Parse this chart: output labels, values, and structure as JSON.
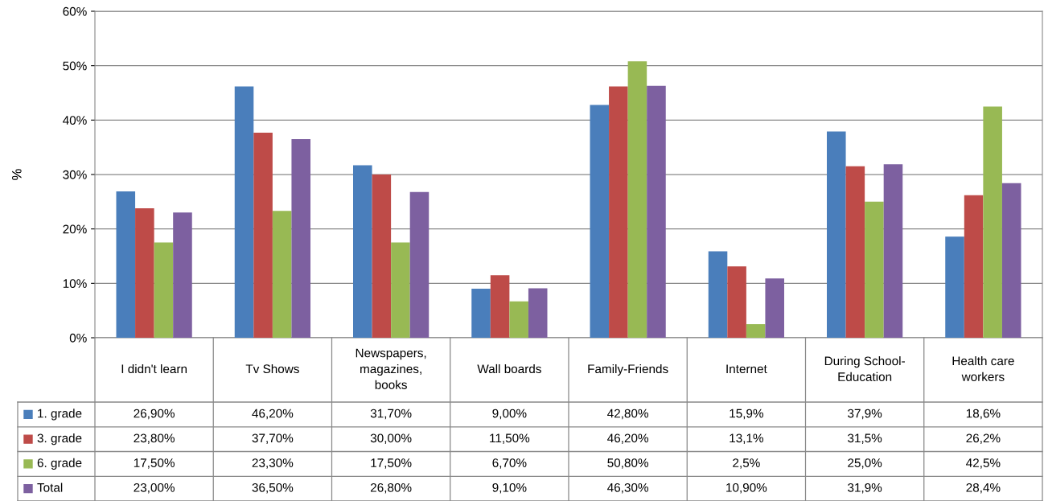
{
  "chart_data": {
    "type": "bar",
    "ylabel": "%",
    "categories": [
      "I didn't learn",
      "Tv Shows",
      "Newspapers,\nmagazines,\nbooks",
      "Wall boards",
      "Family-Friends",
      "Internet",
      "During School-\nEducation",
      "Health care\nworkers"
    ],
    "series": [
      {
        "name": "1. grade",
        "color": "#4a7ebb",
        "values": [
          26.9,
          46.2,
          31.7,
          9.0,
          42.8,
          15.9,
          37.9,
          18.6
        ],
        "value_labels": [
          "26,90%",
          "46,20%",
          "31,70%",
          "9,00%",
          "42,80%",
          "15,9%",
          "37,9%",
          "18,6%"
        ]
      },
      {
        "name": "3. grade",
        "color": "#be4b48",
        "values": [
          23.8,
          37.7,
          30.0,
          11.5,
          46.2,
          13.1,
          31.5,
          26.2
        ],
        "value_labels": [
          "23,80%",
          "37,70%",
          "30,00%",
          "11,50%",
          "46,20%",
          "13,1%",
          "31,5%",
          "26,2%"
        ]
      },
      {
        "name": "6. grade",
        "color": "#98b954",
        "values": [
          17.5,
          23.3,
          17.5,
          6.7,
          50.8,
          2.5,
          25.0,
          42.5
        ],
        "value_labels": [
          "17,50%",
          "23,30%",
          "17,50%",
          "6,70%",
          "50,80%",
          "2,5%",
          "25,0%",
          "42,5%"
        ]
      },
      {
        "name": "Total",
        "color": "#7d60a0",
        "values": [
          23.0,
          36.5,
          26.8,
          9.1,
          46.3,
          10.9,
          31.9,
          28.4
        ],
        "value_labels": [
          "23,00%",
          "36,50%",
          "26,80%",
          "9,10%",
          "46,30%",
          "10,90%",
          "31,9%",
          "28,4%"
        ]
      }
    ],
    "ylim": [
      0,
      60
    ],
    "yticks": [
      {
        "value": 0,
        "label": "0%"
      },
      {
        "value": 10,
        "label": "10%"
      },
      {
        "value": 20,
        "label": "20%"
      },
      {
        "value": 30,
        "label": "30%"
      },
      {
        "value": 40,
        "label": "40%"
      },
      {
        "value": 50,
        "label": "50%"
      },
      {
        "value": 60,
        "label": "60%"
      }
    ],
    "grid": "y",
    "legend": "bottom"
  }
}
